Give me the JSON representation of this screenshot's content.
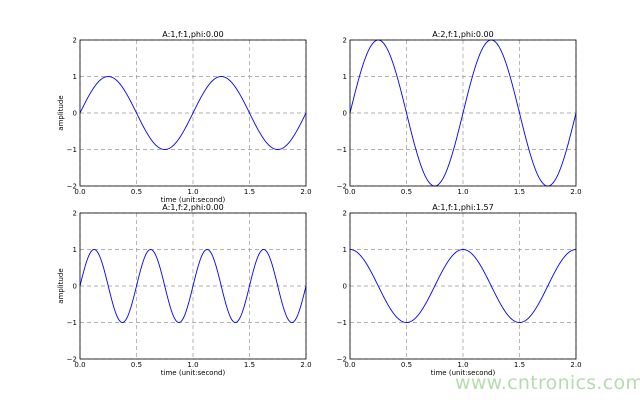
{
  "chart_data": [
    {
      "type": "line",
      "title": "A:1,f:1,phi:0.00",
      "xlabel": "time (unit:second)",
      "ylabel": "amplitude",
      "xlim": [
        0,
        2
      ],
      "ylim": [
        -2,
        2
      ],
      "xticks": [
        "0.0",
        "0.5",
        "1.0",
        "1.5",
        "2.0"
      ],
      "yticks": [
        "−2",
        "−1",
        "0",
        "1",
        "2"
      ],
      "grid": true,
      "function": "A*sin(2*pi*f*t+phi)",
      "A": 1,
      "f": 1,
      "phi": 0.0,
      "color": "#0000ff"
    },
    {
      "type": "line",
      "title": "A:2,f:1,phi:0.00",
      "xlabel": "",
      "ylabel": "",
      "xlim": [
        0,
        2
      ],
      "ylim": [
        -2,
        2
      ],
      "xticks": [
        "0.0",
        "0.5",
        "1.0",
        "1.5",
        "2.0"
      ],
      "yticks": [
        "−2",
        "−1",
        "0",
        "1",
        "2"
      ],
      "grid": true,
      "function": "A*sin(2*pi*f*t+phi)",
      "A": 2,
      "f": 1,
      "phi": 0.0,
      "color": "#0000ff"
    },
    {
      "type": "line",
      "title": "A:1,f:2,phi:0.00",
      "xlabel": "time (unit:second)",
      "ylabel": "amplitude",
      "xlim": [
        0,
        2
      ],
      "ylim": [
        -2,
        2
      ],
      "xticks": [
        "0.0",
        "0.5",
        "1.0",
        "1.5",
        "2.0"
      ],
      "yticks": [
        "−2",
        "−1",
        "0",
        "1",
        "2"
      ],
      "grid": true,
      "function": "A*sin(2*pi*f*t+phi)",
      "A": 1,
      "f": 2,
      "phi": 0.0,
      "color": "#0000ff"
    },
    {
      "type": "line",
      "title": "A:1,f:1,phi:1.57",
      "xlabel": "time (unit:second)",
      "ylabel": "",
      "xlim": [
        0,
        2
      ],
      "ylim": [
        -2,
        2
      ],
      "xticks": [
        "0.0",
        "0.5",
        "1.0",
        "1.5",
        "2.0"
      ],
      "yticks": [
        "−2",
        "−1",
        "0",
        "1",
        "2"
      ],
      "grid": true,
      "function": "A*sin(2*pi*f*t+phi)",
      "A": 1,
      "f": 1,
      "phi": 1.57,
      "color": "#0000ff"
    }
  ],
  "watermark": "www.cntronics.com"
}
